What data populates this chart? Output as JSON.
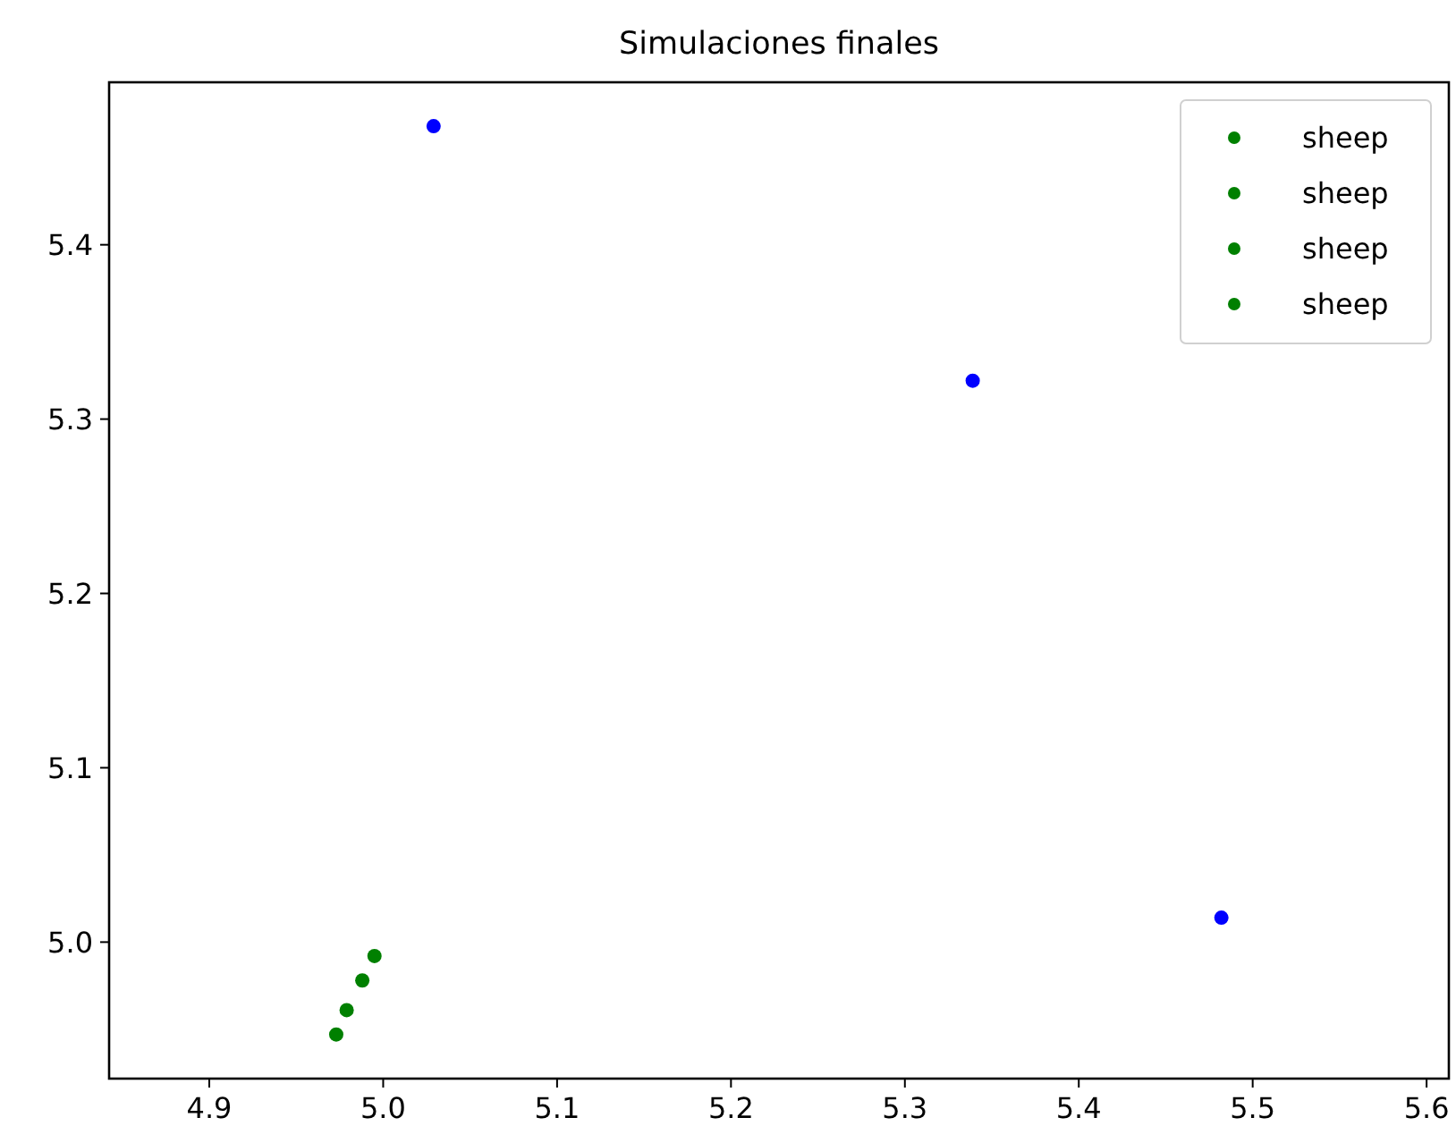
{
  "chart_data": {
    "type": "scatter",
    "title": "Simulaciones finales",
    "xlim": [
      4.8424,
      5.6128
    ],
    "xticks": [
      {
        "value": 4.9,
        "label": "4.9"
      },
      {
        "value": 5.0,
        "label": "5.0"
      },
      {
        "value": 5.1,
        "label": "5.1"
      },
      {
        "value": 5.2,
        "label": "5.2"
      },
      {
        "value": 5.3,
        "label": "5.3"
      },
      {
        "value": 5.4,
        "label": "5.4"
      },
      {
        "value": 5.5,
        "label": "5.5"
      },
      {
        "value": 5.6,
        "label": "5.6"
      }
    ],
    "ylim": [
      4.9217,
      5.4932
    ],
    "yticks": [
      {
        "value": 5.0,
        "label": "5.0"
      },
      {
        "value": 5.1,
        "label": "5.1"
      },
      {
        "value": 5.2,
        "label": "5.2"
      },
      {
        "value": 5.3,
        "label": "5.3"
      },
      {
        "value": 5.4,
        "label": "5.4"
      }
    ],
    "marker": "circle",
    "legend": "top right",
    "grid": false,
    "series": [
      {
        "color": "#0000ff",
        "x": [
          5.029,
          5.339,
          5.482
        ],
        "values": [
          5.468,
          5.322,
          5.014
        ]
      },
      {
        "name": "sheep",
        "color": "#008000",
        "x": [
          4.973
        ],
        "values": [
          4.947
        ]
      },
      {
        "name": "sheep",
        "color": "#008000",
        "x": [
          4.979
        ],
        "values": [
          4.961
        ]
      },
      {
        "name": "sheep",
        "color": "#008000",
        "x": [
          4.988
        ],
        "values": [
          4.978
        ]
      },
      {
        "name": "sheep",
        "color": "#008000",
        "x": [
          4.995
        ],
        "values": [
          4.992
        ]
      }
    ]
  }
}
